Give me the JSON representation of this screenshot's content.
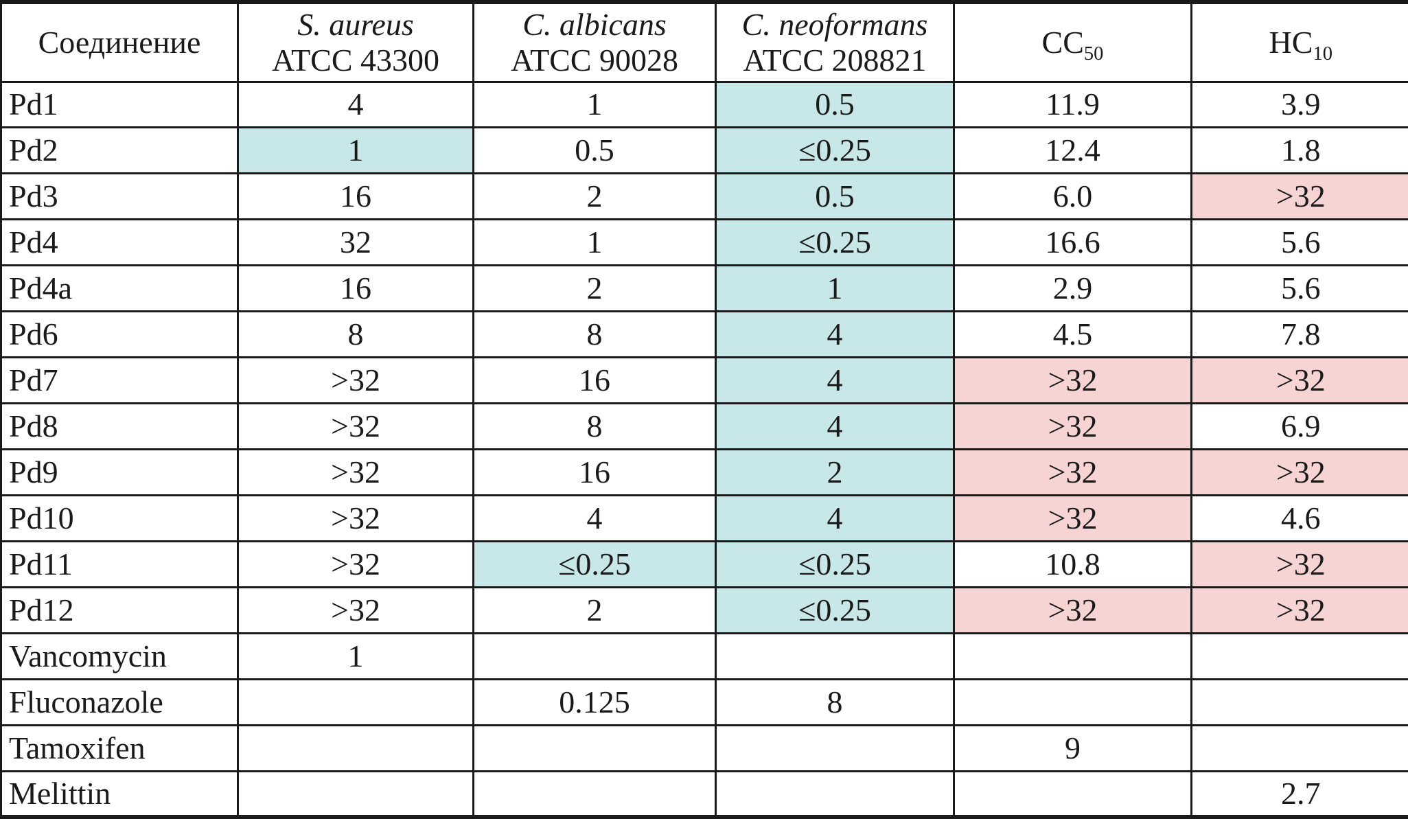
{
  "colors": {
    "teal": "#c8e7e8",
    "pink": "#f6d4d4",
    "border": "#1a1a1a",
    "text": "#1a1a1a"
  },
  "table": {
    "columns": [
      {
        "title": "Соединение"
      },
      {
        "species": "S. aureus",
        "strain": "ATCC 43300"
      },
      {
        "species": "C. albicans",
        "strain": "ATCC 90028"
      },
      {
        "species": "C. neoformans",
        "strain": "ATCC 208821"
      },
      {
        "main": "CC",
        "sub": "50"
      },
      {
        "main": "HC",
        "sub": "10"
      }
    ],
    "rows": [
      {
        "label": "Pd1",
        "cells": [
          {
            "text": "4",
            "bg": ""
          },
          {
            "text": "1",
            "bg": ""
          },
          {
            "text": "0.5",
            "bg": "teal"
          },
          {
            "text": "11.9",
            "bg": ""
          },
          {
            "text": "3.9",
            "bg": ""
          }
        ]
      },
      {
        "label": "Pd2",
        "cells": [
          {
            "text": "1",
            "bg": "teal"
          },
          {
            "text": "0.5",
            "bg": ""
          },
          {
            "text": "≤0.25",
            "bg": "teal"
          },
          {
            "text": "12.4",
            "bg": ""
          },
          {
            "text": "1.8",
            "bg": ""
          }
        ]
      },
      {
        "label": "Pd3",
        "cells": [
          {
            "text": "16",
            "bg": ""
          },
          {
            "text": "2",
            "bg": ""
          },
          {
            "text": "0.5",
            "bg": "teal"
          },
          {
            "text": "6.0",
            "bg": ""
          },
          {
            "text": ">32",
            "bg": "pink"
          }
        ]
      },
      {
        "label": "Pd4",
        "cells": [
          {
            "text": "32",
            "bg": ""
          },
          {
            "text": "1",
            "bg": ""
          },
          {
            "text": "≤0.25",
            "bg": "teal"
          },
          {
            "text": "16.6",
            "bg": ""
          },
          {
            "text": "5.6",
            "bg": ""
          }
        ]
      },
      {
        "label": "Pd4a",
        "cells": [
          {
            "text": "16",
            "bg": ""
          },
          {
            "text": "2",
            "bg": ""
          },
          {
            "text": "1",
            "bg": "teal"
          },
          {
            "text": "2.9",
            "bg": ""
          },
          {
            "text": "5.6",
            "bg": ""
          }
        ]
      },
      {
        "label": "Pd6",
        "cells": [
          {
            "text": "8",
            "bg": ""
          },
          {
            "text": "8",
            "bg": ""
          },
          {
            "text": "4",
            "bg": "teal"
          },
          {
            "text": "4.5",
            "bg": ""
          },
          {
            "text": "7.8",
            "bg": ""
          }
        ]
      },
      {
        "label": "Pd7",
        "cells": [
          {
            "text": ">32",
            "bg": ""
          },
          {
            "text": "16",
            "bg": ""
          },
          {
            "text": "4",
            "bg": "teal"
          },
          {
            "text": ">32",
            "bg": "pink"
          },
          {
            "text": ">32",
            "bg": "pink"
          }
        ]
      },
      {
        "label": "Pd8",
        "cells": [
          {
            "text": ">32",
            "bg": ""
          },
          {
            "text": "8",
            "bg": ""
          },
          {
            "text": "4",
            "bg": "teal"
          },
          {
            "text": ">32",
            "bg": "pink"
          },
          {
            "text": "6.9",
            "bg": ""
          }
        ]
      },
      {
        "label": "Pd9",
        "cells": [
          {
            "text": ">32",
            "bg": ""
          },
          {
            "text": "16",
            "bg": ""
          },
          {
            "text": "2",
            "bg": "teal"
          },
          {
            "text": ">32",
            "bg": "pink"
          },
          {
            "text": ">32",
            "bg": "pink"
          }
        ]
      },
      {
        "label": "Pd10",
        "cells": [
          {
            "text": ">32",
            "bg": ""
          },
          {
            "text": "4",
            "bg": ""
          },
          {
            "text": "4",
            "bg": "teal"
          },
          {
            "text": ">32",
            "bg": "pink"
          },
          {
            "text": "4.6",
            "bg": ""
          }
        ]
      },
      {
        "label": "Pd11",
        "cells": [
          {
            "text": ">32",
            "bg": ""
          },
          {
            "text": "≤0.25",
            "bg": "teal"
          },
          {
            "text": "≤0.25",
            "bg": "teal"
          },
          {
            "text": "10.8",
            "bg": ""
          },
          {
            "text": ">32",
            "bg": "pink"
          }
        ]
      },
      {
        "label": "Pd12",
        "cells": [
          {
            "text": ">32",
            "bg": ""
          },
          {
            "text": "2",
            "bg": ""
          },
          {
            "text": "≤0.25",
            "bg": "teal"
          },
          {
            "text": ">32",
            "bg": "pink"
          },
          {
            "text": ">32",
            "bg": "pink"
          }
        ]
      },
      {
        "label": "Vancomycin",
        "cells": [
          {
            "text": "1",
            "bg": ""
          },
          {
            "text": "",
            "bg": ""
          },
          {
            "text": "",
            "bg": ""
          },
          {
            "text": "",
            "bg": ""
          },
          {
            "text": "",
            "bg": ""
          }
        ]
      },
      {
        "label": "Fluconazole",
        "cells": [
          {
            "text": "",
            "bg": ""
          },
          {
            "text": "0.125",
            "bg": ""
          },
          {
            "text": "8",
            "bg": ""
          },
          {
            "text": "",
            "bg": ""
          },
          {
            "text": "",
            "bg": ""
          }
        ]
      },
      {
        "label": "Tamoxifen",
        "cells": [
          {
            "text": "",
            "bg": ""
          },
          {
            "text": "",
            "bg": ""
          },
          {
            "text": "",
            "bg": ""
          },
          {
            "text": "9",
            "bg": ""
          },
          {
            "text": "",
            "bg": ""
          }
        ]
      },
      {
        "label": "Melittin",
        "cells": [
          {
            "text": "",
            "bg": ""
          },
          {
            "text": "",
            "bg": ""
          },
          {
            "text": "",
            "bg": ""
          },
          {
            "text": "",
            "bg": ""
          },
          {
            "text": "2.7",
            "bg": ""
          }
        ]
      }
    ]
  }
}
